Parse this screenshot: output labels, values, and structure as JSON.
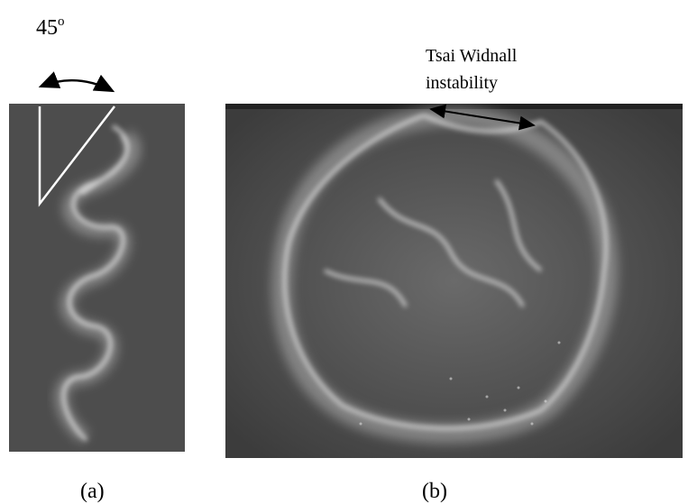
{
  "figure": {
    "angle_label": {
      "text": "45",
      "superscript": "o"
    },
    "annotation": {
      "line1": "Tsai Widnall",
      "line2": "instability"
    },
    "panel_a": {
      "label": "(a)"
    },
    "panel_b": {
      "label": "(b)"
    }
  }
}
